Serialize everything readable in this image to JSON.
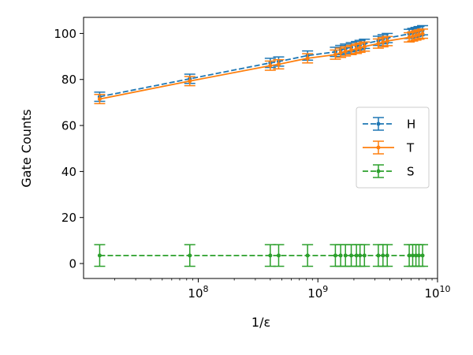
{
  "chart_data": {
    "type": "line",
    "xlabel": "1/ε",
    "ylabel": "Gate Counts",
    "xscale": "log",
    "xlim": [
      11000000,
      10000000000
    ],
    "ylim": [
      -6.5,
      107
    ],
    "x_ticks": [
      {
        "value": 100000000,
        "base": "10",
        "exp": "8"
      },
      {
        "value": 1000000000,
        "base": "10",
        "exp": "9"
      },
      {
        "value": 10000000000,
        "base": "10",
        "exp": "10"
      }
    ],
    "y_ticks": [
      0,
      20,
      40,
      60,
      80,
      100
    ],
    "legend_position": "right",
    "x": [
      15000000,
      85000000,
      400000000,
      470000000,
      820000000,
      1400000000,
      1550000000,
      1700000000,
      1900000000,
      2100000000,
      2250000000,
      2450000000,
      3200000000,
      3500000000,
      3800000000,
      5800000000,
      6200000000,
      6600000000,
      7000000000,
      7500000000
    ],
    "series": [
      {
        "name": "H",
        "color": "#1f77b4",
        "dash": "dashed",
        "values": [
          72.5,
          80.3,
          87.2,
          87.8,
          90.4,
          92.0,
          92.8,
          93.4,
          94.0,
          94.5,
          95.0,
          95.5,
          96.8,
          97.5,
          98.0,
          99.8,
          100.2,
          100.6,
          101.0,
          101.4
        ],
        "err": 2.0
      },
      {
        "name": "T",
        "color": "#ff7f0e",
        "dash": "solid",
        "values": [
          71.5,
          79.3,
          86.0,
          86.6,
          89.2,
          90.8,
          91.6,
          92.2,
          92.8,
          93.3,
          93.8,
          94.3,
          95.6,
          96.2,
          96.7,
          98.3,
          98.7,
          99.1,
          99.5,
          99.9
        ],
        "err": 2.0
      },
      {
        "name": "S",
        "color": "#2ca02c",
        "dash": "dashed",
        "values": [
          3.5,
          3.5,
          3.5,
          3.5,
          3.5,
          3.5,
          3.5,
          3.5,
          3.5,
          3.5,
          3.5,
          3.5,
          3.5,
          3.5,
          3.5,
          3.5,
          3.5,
          3.5,
          3.5,
          3.5
        ],
        "err": 4.7
      }
    ]
  }
}
